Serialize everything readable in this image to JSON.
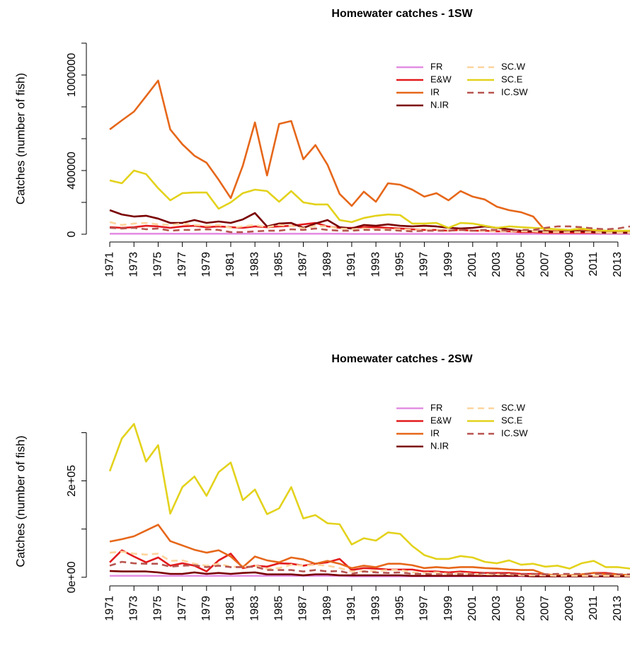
{
  "chart_data": [
    {
      "type": "line",
      "title": "Homewater catches - 1SW",
      "ylabel": "Catches (number of fish)",
      "legend": "topright",
      "x": [
        1971,
        1972,
        1973,
        1974,
        1975,
        1976,
        1977,
        1978,
        1979,
        1980,
        1981,
        1982,
        1983,
        1984,
        1985,
        1986,
        1987,
        1988,
        1989,
        1990,
        1991,
        1992,
        1993,
        1994,
        1995,
        1996,
        1997,
        1998,
        1999,
        2000,
        2001,
        2002,
        2003,
        2004,
        2005,
        2006,
        2007,
        2008,
        2009,
        2010,
        2011,
        2012,
        2013,
        2014
      ],
      "xlim": [
        1969.3,
        2014
      ],
      "xticks": [
        1971,
        1973,
        1975,
        1977,
        1979,
        1981,
        1983,
        1985,
        1987,
        1989,
        1991,
        1993,
        1995,
        1997,
        1999,
        2001,
        2003,
        2005,
        2007,
        2009,
        2011,
        2013
      ],
      "ylim": [
        -40000,
        1240000
      ],
      "yticks": [
        0,
        400000,
        1000000
      ],
      "yminor": [
        200000,
        600000,
        800000,
        1200000
      ],
      "series": [
        {
          "name": "FR",
          "color": "#e38ee3",
          "dashed": false,
          "values": [
            3000,
            3000,
            3000,
            3000,
            3000,
            3000,
            3000,
            3000,
            3000,
            3000,
            3000,
            3000,
            3000,
            3000,
            3000,
            3000,
            3000,
            3000,
            3000,
            3000,
            2000,
            2000,
            2000,
            2000,
            2000,
            2000,
            2000,
            2000,
            2000,
            2000,
            2000,
            2000,
            2000,
            2000,
            2000,
            2000,
            2000,
            2000,
            2000,
            2000,
            2000,
            2000,
            2000,
            2000
          ]
        },
        {
          "name": "E&W",
          "color": "#e31a1c",
          "dashed": false,
          "values": [
            44000,
            40000,
            44000,
            53000,
            49000,
            40000,
            49000,
            53000,
            44000,
            49000,
            44000,
            40000,
            49000,
            44000,
            49000,
            53000,
            62000,
            71000,
            49000,
            40000,
            40000,
            44000,
            44000,
            40000,
            36000,
            31000,
            27000,
            27000,
            22000,
            27000,
            22000,
            22000,
            18000,
            18000,
            13000,
            13000,
            9000,
            9000,
            9000,
            9000,
            9000,
            9000,
            9000,
            9000
          ]
        },
        {
          "name": "IR",
          "color": "#e6671a",
          "dashed": false,
          "values": [
            658000,
            715000,
            770000,
            867000,
            965000,
            658000,
            565000,
            493000,
            449000,
            342000,
            227000,
            431000,
            702000,
            369000,
            693000,
            711000,
            471000,
            560000,
            436000,
            253000,
            178000,
            267000,
            204000,
            320000,
            311000,
            280000,
            236000,
            258000,
            213000,
            271000,
            236000,
            218000,
            173000,
            151000,
            138000,
            111000,
            22000,
            18000,
            22000,
            31000,
            18000,
            13000,
            18000,
            13000
          ]
        },
        {
          "name": "N.IR",
          "color": "#7a0000",
          "dashed": false,
          "values": [
            151000,
            124000,
            111000,
            116000,
            98000,
            71000,
            71000,
            89000,
            71000,
            80000,
            71000,
            93000,
            133000,
            49000,
            67000,
            71000,
            40000,
            67000,
            89000,
            44000,
            36000,
            58000,
            53000,
            62000,
            53000,
            49000,
            53000,
            49000,
            40000,
            36000,
            40000,
            49000,
            40000,
            31000,
            22000,
            18000,
            18000,
            13000,
            18000,
            18000,
            13000,
            9000,
            9000,
            9000
          ]
        },
        {
          "name": "SC.W",
          "color": "#fdd49e",
          "dashed": true,
          "values": [
            76000,
            58000,
            67000,
            71000,
            62000,
            58000,
            67000,
            58000,
            53000,
            58000,
            40000,
            49000,
            58000,
            44000,
            58000,
            53000,
            36000,
            53000,
            49000,
            36000,
            31000,
            36000,
            31000,
            31000,
            31000,
            27000,
            27000,
            27000,
            22000,
            27000,
            22000,
            22000,
            18000,
            18000,
            18000,
            18000,
            13000,
            13000,
            13000,
            13000,
            13000,
            9000,
            9000,
            9000
          ]
        },
        {
          "name": "SC.E",
          "color": "#e3d21c",
          "dashed": false,
          "values": [
            338000,
            320000,
            400000,
            378000,
            289000,
            213000,
            258000,
            262000,
            262000,
            160000,
            200000,
            258000,
            280000,
            271000,
            204000,
            271000,
            200000,
            187000,
            187000,
            89000,
            76000,
            102000,
            116000,
            124000,
            120000,
            67000,
            67000,
            71000,
            40000,
            71000,
            67000,
            53000,
            40000,
            49000,
            44000,
            40000,
            36000,
            31000,
            27000,
            36000,
            27000,
            22000,
            22000,
            22000
          ]
        },
        {
          "name": "IC.SW",
          "color": "#b85450",
          "dashed": true,
          "values": [
            40000,
            36000,
            40000,
            31000,
            36000,
            22000,
            27000,
            27000,
            31000,
            27000,
            13000,
            13000,
            18000,
            22000,
            22000,
            31000,
            27000,
            36000,
            27000,
            22000,
            22000,
            27000,
            27000,
            27000,
            22000,
            18000,
            22000,
            22000,
            22000,
            27000,
            22000,
            27000,
            27000,
            22000,
            27000,
            27000,
            40000,
            49000,
            49000,
            44000,
            36000,
            31000,
            36000,
            49000
          ]
        }
      ]
    },
    {
      "type": "line",
      "title": "Homewater catches - 2SW",
      "ylabel": "Catches (number of fish)",
      "legend": "topright",
      "x": [
        1971,
        1972,
        1973,
        1974,
        1975,
        1976,
        1977,
        1978,
        1979,
        1980,
        1981,
        1982,
        1983,
        1984,
        1985,
        1986,
        1987,
        1988,
        1989,
        1990,
        1991,
        1992,
        1993,
        1994,
        1995,
        1996,
        1997,
        1998,
        1999,
        2000,
        2001,
        2002,
        2003,
        2004,
        2005,
        2006,
        2007,
        2008,
        2009,
        2010,
        2011,
        2012,
        2013,
        2014
      ],
      "xlim": [
        1969.3,
        2014
      ],
      "xticks": [
        1971,
        1973,
        1975,
        1977,
        1979,
        1981,
        1983,
        1985,
        1987,
        1989,
        1991,
        1993,
        1995,
        1997,
        1999,
        2001,
        2003,
        2005,
        2007,
        2009,
        2011,
        2013
      ],
      "ylim": [
        -15000,
        330000
      ],
      "yticks": [
        {
          "value": 0,
          "label": "0e+00"
        },
        {
          "value": 200000,
          "label": "2e+05"
        }
      ],
      "yminor": [
        100000,
        300000
      ],
      "series": [
        {
          "name": "FR",
          "color": "#e38ee3",
          "dashed": false,
          "values": [
            3000,
            3000,
            3000,
            3000,
            3000,
            3000,
            3000,
            3000,
            3000,
            3000,
            3000,
            3000,
            3000,
            3000,
            3000,
            3000,
            3000,
            3000,
            3000,
            3000,
            2000,
            2000,
            2000,
            2000,
            2000,
            2000,
            2000,
            2000,
            2000,
            2000,
            2000,
            2000,
            2000,
            2000,
            2000,
            2000,
            2000,
            2000,
            2000,
            2000,
            2000,
            2000,
            2000,
            2000
          ]
        },
        {
          "name": "E&W",
          "color": "#e31a1c",
          "dashed": false,
          "values": [
            31000,
            56000,
            43000,
            31000,
            41000,
            24000,
            29000,
            24000,
            12000,
            35000,
            49000,
            19000,
            24000,
            22000,
            29000,
            28000,
            24000,
            28000,
            31000,
            38000,
            15000,
            19000,
            18000,
            16000,
            16000,
            16000,
            12000,
            12000,
            10000,
            12000,
            10000,
            9000,
            9000,
            9000,
            7000,
            7000,
            6000,
            4000,
            4000,
            4000,
            9000,
            9000,
            6000,
            4000
          ]
        },
        {
          "name": "IR",
          "color": "#e6671a",
          "dashed": false,
          "values": [
            74000,
            79000,
            85000,
            97000,
            109000,
            75000,
            66000,
            57000,
            51000,
            56000,
            43000,
            21000,
            43000,
            35000,
            31000,
            41000,
            37000,
            28000,
            34000,
            28000,
            19000,
            24000,
            21000,
            28000,
            28000,
            25000,
            19000,
            21000,
            19000,
            21000,
            21000,
            19000,
            18000,
            16000,
            15000,
            15000,
            6000,
            4000,
            4000,
            6000,
            9000,
            6000,
            6000,
            4000
          ]
        },
        {
          "name": "N.IR",
          "color": "#7a0000",
          "dashed": false,
          "values": [
            13000,
            12000,
            12000,
            12000,
            10000,
            7000,
            7000,
            10000,
            7000,
            9000,
            7000,
            9000,
            10000,
            6000,
            6000,
            6000,
            4000,
            6000,
            6000,
            4000,
            4000,
            4000,
            4000,
            4000,
            4000,
            3000,
            3000,
            3000,
            3000,
            3000,
            3000,
            3000,
            3000,
            3000,
            3000,
            2000,
            2000,
            2000,
            2000,
            2000,
            2000,
            2000,
            2000,
            2000
          ]
        },
        {
          "name": "SC.W",
          "color": "#fdd49e",
          "dashed": true,
          "values": [
            51000,
            53000,
            49000,
            47000,
            49000,
            34000,
            35000,
            28000,
            24000,
            28000,
            22000,
            21000,
            24000,
            18000,
            19000,
            26000,
            24000,
            26000,
            24000,
            19000,
            12000,
            13000,
            13000,
            15000,
            15000,
            10000,
            9000,
            10000,
            7000,
            9000,
            7000,
            6000,
            6000,
            6000,
            4000,
            4000,
            4000,
            3000,
            3000,
            3000,
            3000,
            3000,
            3000,
            3000
          ]
        },
        {
          "name": "SC.E",
          "color": "#e3d21c",
          "dashed": false,
          "values": [
            220000,
            288000,
            318000,
            240000,
            274000,
            132000,
            187000,
            209000,
            169000,
            218000,
            238000,
            160000,
            182000,
            131000,
            143000,
            187000,
            122000,
            129000,
            112000,
            110000,
            68000,
            81000,
            76000,
            93000,
            90000,
            65000,
            46000,
            38000,
            38000,
            44000,
            41000,
            32000,
            29000,
            35000,
            26000,
            28000,
            22000,
            24000,
            18000,
            29000,
            34000,
            21000,
            21000,
            18000
          ]
        },
        {
          "name": "IC.SW",
          "color": "#b85450",
          "dashed": true,
          "values": [
            24000,
            32000,
            29000,
            28000,
            28000,
            22000,
            24000,
            25000,
            21000,
            24000,
            21000,
            21000,
            22000,
            15000,
            15000,
            15000,
            12000,
            15000,
            12000,
            13000,
            7000,
            12000,
            10000,
            9000,
            10000,
            7000,
            7000,
            6000,
            6000,
            7000,
            6000,
            9000,
            7000,
            7000,
            6000,
            7000,
            6000,
            7000,
            7000,
            7000,
            7000,
            7000,
            6000,
            6000
          ]
        }
      ]
    }
  ]
}
